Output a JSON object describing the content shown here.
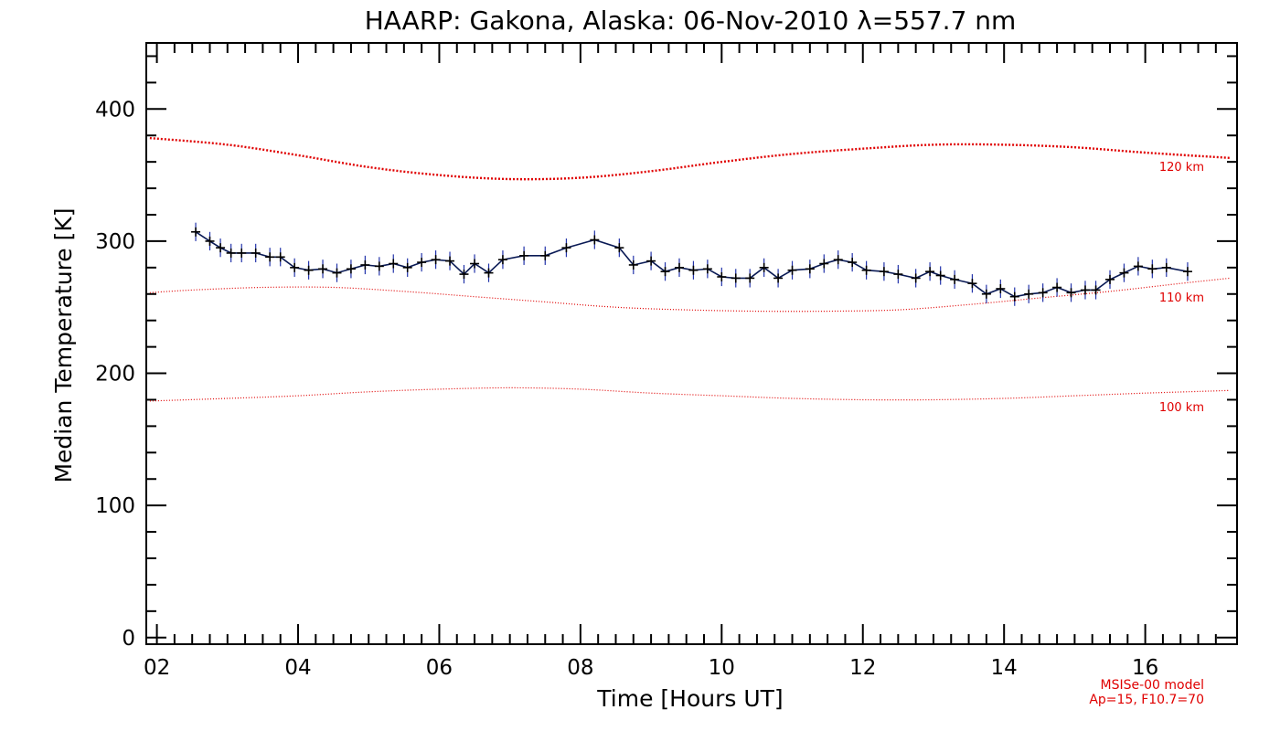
{
  "chart_data": {
    "type": "line",
    "title": "HAARP: Gakona,  Alaska: 06-Nov-2010 λ=557.7 nm",
    "xlabel": "Time [Hours UT]",
    "ylabel": "Median Temperature [K]",
    "xlim": [
      1.85,
      17.3
    ],
    "ylim": [
      -5,
      450
    ],
    "x_ticks": [
      "02",
      "04",
      "06",
      "08",
      "10",
      "12",
      "14",
      "16"
    ],
    "x_tick_values": [
      2,
      4,
      6,
      8,
      10,
      12,
      14,
      16
    ],
    "y_ticks": [
      "0",
      "100",
      "200",
      "300",
      "400"
    ],
    "y_tick_values": [
      0,
      100,
      200,
      300,
      400
    ],
    "grid": false,
    "notes": [
      "MSISe-00 model",
      "Ap=15, F10.7=70"
    ],
    "series": [
      {
        "color": "#0a1a55",
        "marker_color": "#1a2a8a",
        "errorbar_color": "#2233aa",
        "style": "solid",
        "error": 7,
        "points": [
          [
            2.55,
            307
          ],
          [
            2.75,
            300
          ],
          [
            2.9,
            295
          ],
          [
            3.05,
            291
          ],
          [
            3.2,
            291
          ],
          [
            3.4,
            291
          ],
          [
            3.6,
            288
          ],
          [
            3.75,
            288
          ],
          [
            3.95,
            280
          ],
          [
            4.15,
            278
          ],
          [
            4.35,
            279
          ],
          [
            4.55,
            276
          ],
          [
            4.75,
            279
          ],
          [
            4.95,
            282
          ],
          [
            5.15,
            281
          ],
          [
            5.35,
            283
          ],
          [
            5.55,
            280
          ],
          [
            5.75,
            284
          ],
          [
            5.95,
            286
          ],
          [
            6.15,
            285
          ],
          [
            6.35,
            275
          ],
          [
            6.5,
            283
          ],
          [
            6.7,
            276
          ],
          [
            6.9,
            286
          ],
          [
            7.2,
            289
          ],
          [
            7.5,
            289
          ],
          [
            7.8,
            295
          ],
          [
            8.2,
            301
          ],
          [
            8.55,
            295
          ],
          [
            8.75,
            282
          ],
          [
            9.0,
            285
          ],
          [
            9.2,
            277
          ],
          [
            9.4,
            280
          ],
          [
            9.6,
            278
          ],
          [
            9.8,
            279
          ],
          [
            10.0,
            273
          ],
          [
            10.2,
            272
          ],
          [
            10.4,
            272
          ],
          [
            10.6,
            280
          ],
          [
            10.8,
            272
          ],
          [
            11.0,
            278
          ],
          [
            11.25,
            279
          ],
          [
            11.45,
            283
          ],
          [
            11.65,
            286
          ],
          [
            11.85,
            284
          ],
          [
            12.05,
            278
          ],
          [
            12.3,
            277
          ],
          [
            12.5,
            275
          ],
          [
            12.75,
            272
          ],
          [
            12.95,
            277
          ],
          [
            13.1,
            274
          ],
          [
            13.3,
            271
          ],
          [
            13.55,
            268
          ],
          [
            13.75,
            260
          ],
          [
            13.95,
            264
          ],
          [
            14.15,
            258
          ],
          [
            14.35,
            260
          ],
          [
            14.55,
            261
          ],
          [
            14.75,
            265
          ],
          [
            14.95,
            261
          ],
          [
            15.15,
            263
          ],
          [
            15.3,
            263
          ],
          [
            15.5,
            271
          ],
          [
            15.7,
            276
          ],
          [
            15.9,
            281
          ],
          [
            16.1,
            279
          ],
          [
            16.3,
            280
          ],
          [
            16.6,
            277
          ]
        ]
      },
      {
        "name": "120 km",
        "color": "#e00000",
        "style": "dotted-heavy",
        "points": [
          [
            1.9,
            378
          ],
          [
            3,
            373
          ],
          [
            4,
            365
          ],
          [
            5,
            356
          ],
          [
            6,
            350
          ],
          [
            7,
            347
          ],
          [
            8,
            348
          ],
          [
            9,
            353
          ],
          [
            10,
            360
          ],
          [
            11,
            366
          ],
          [
            12,
            370
          ],
          [
            13,
            373
          ],
          [
            14,
            373
          ],
          [
            15,
            371
          ],
          [
            16,
            367
          ],
          [
            17.2,
            363
          ]
        ]
      },
      {
        "name": "110 km",
        "color": "#e00000",
        "style": "dotted",
        "points": [
          [
            1.9,
            261
          ],
          [
            2.5,
            263
          ],
          [
            3.5,
            265
          ],
          [
            4.5,
            265
          ],
          [
            5.5,
            262
          ],
          [
            6.5,
            258
          ],
          [
            7.5,
            254
          ],
          [
            8.5,
            250
          ],
          [
            9.5,
            248
          ],
          [
            10.5,
            247
          ],
          [
            11.5,
            247
          ],
          [
            12.5,
            248
          ],
          [
            13.5,
            252
          ],
          [
            14.5,
            257
          ],
          [
            15.5,
            262
          ],
          [
            16.5,
            268
          ],
          [
            17.2,
            272
          ]
        ]
      },
      {
        "name": "100 km",
        "color": "#e00000",
        "style": "dotted",
        "points": [
          [
            1.9,
            179
          ],
          [
            3,
            181
          ],
          [
            4,
            183
          ],
          [
            5,
            186
          ],
          [
            6,
            188
          ],
          [
            7,
            189
          ],
          [
            8,
            188
          ],
          [
            9,
            185
          ],
          [
            10,
            183
          ],
          [
            11,
            181
          ],
          [
            12,
            180
          ],
          [
            13,
            180
          ],
          [
            14,
            181
          ],
          [
            15,
            183
          ],
          [
            16,
            185
          ],
          [
            17.2,
            187
          ]
        ]
      }
    ],
    "axis_color": "#000000",
    "model_color": "#e00000"
  }
}
